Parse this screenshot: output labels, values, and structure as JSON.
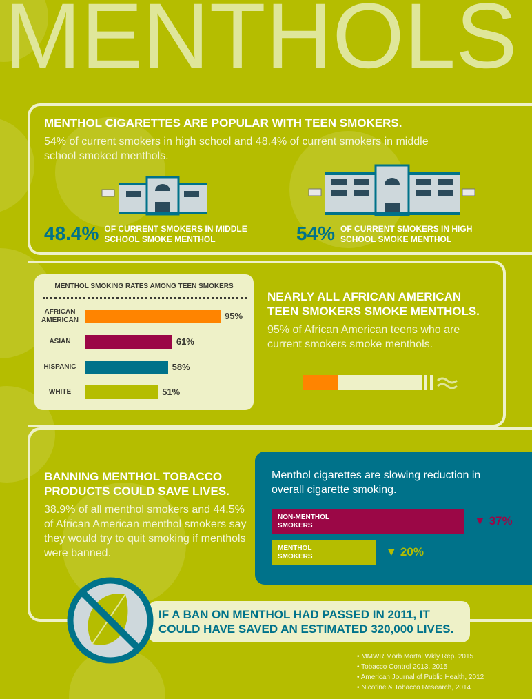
{
  "title": "MENTHOLS",
  "colors": {
    "background": "#b5bd00",
    "teal": "#00728a",
    "magenta": "#9b0746",
    "orange": "#ff8400",
    "cream": "#eef1c8"
  },
  "section1": {
    "headline": "MENTHOL CIGARETTES ARE POPULAR WITH TEEN SMOKERS.",
    "body": "54% of current smokers in high school and 48.4% of current smokers in middle school smoked menthols.",
    "middle": {
      "value": "48.4%",
      "label": "OF CURRENT SMOKERS IN MIDDLE SCHOOL SMOKE MENTHOL"
    },
    "high": {
      "value": "54%",
      "label": "OF CURRENT SMOKERS IN HIGH SCHOOL SMOKE MENTHOL"
    }
  },
  "section2": {
    "headline": "NEARLY ALL AFRICAN AMERICAN TEEN SMOKERS SMOKE MENTHOLS.",
    "body": "95% of African American teens who are current smokers smoke menthols.",
    "cigarette_fill_percent": 95
  },
  "chart_data": [
    {
      "type": "bar",
      "title": "MENTHOL SMOKING RATES AMONG TEEN SMOKERS",
      "orientation": "horizontal",
      "categories": [
        "AFRICAN AMERICAN",
        "ASIAN",
        "HISPANIC",
        "WHITE"
      ],
      "values": [
        95,
        61,
        58,
        51
      ],
      "labels": [
        "95%",
        "61%",
        "58%",
        "51%"
      ],
      "colors": [
        "#ff8400",
        "#9b0746",
        "#00728a",
        "#b5bd00"
      ],
      "xlim": [
        0,
        100
      ]
    },
    {
      "type": "bar",
      "title": "Menthol cigarettes are slowing reduction in overall cigarette smoking.",
      "orientation": "horizontal",
      "categories": [
        "NON-MENTHOL SMOKERS",
        "MENTHOL SMOKERS"
      ],
      "values": [
        37,
        20
      ],
      "labels": [
        "37%",
        "20%"
      ],
      "colors": [
        "#9b0746",
        "#b5bd00"
      ],
      "xlim": [
        0,
        40
      ]
    }
  ],
  "section3": {
    "headline": "BANNING MENTHOL TOBACCO PRODUCTS COULD SAVE LIVES.",
    "body": "38.9% of all menthol smokers and 44.5% of African American menthol smokers say they would try to quit smoking if menthols were banned.",
    "banner": "IF A BAN ON MENTHOL HAD PASSED IN 2011, IT COULD HAVE SAVED AN ESTIMATED 320,000 LIVES."
  },
  "sources": [
    "MMWR Morb Mortal Wkly Rep. 2015",
    "Tobacco Control 2013, 2015",
    "American Journal of Public Health, 2012",
    "Nicotine & Tobacco Research, 2014"
  ]
}
